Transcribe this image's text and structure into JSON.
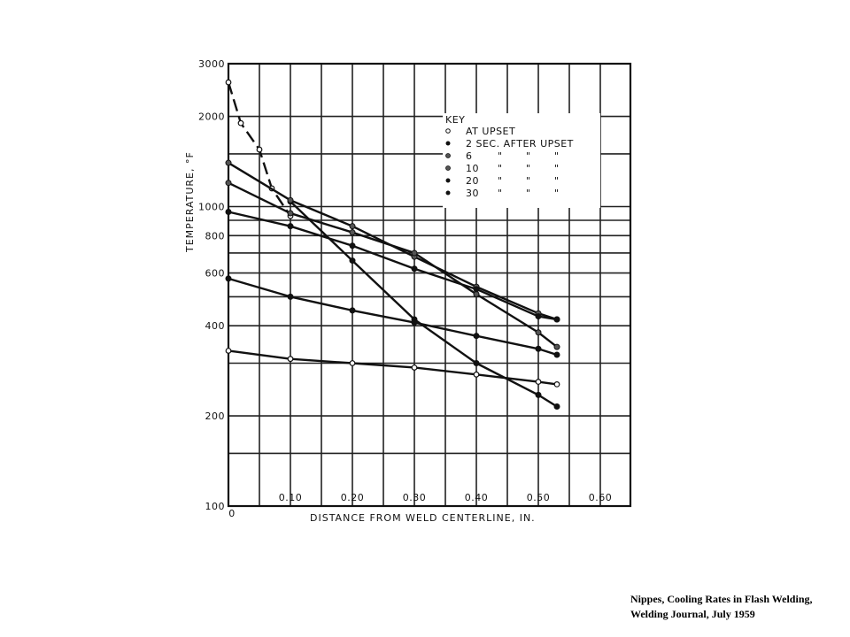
{
  "chart_data": {
    "type": "line",
    "xlabel": "DISTANCE FROM WELD CENTERLINE, IN.",
    "ylabel": "TEMPERATURE, °F",
    "xlim": [
      0,
      0.64
    ],
    "ylim": [
      100,
      3000
    ],
    "y_scale": "log",
    "grid": true,
    "x_ticks": [
      {
        "value": 0,
        "label": "0"
      },
      {
        "value": 0.1,
        "label": "0.10"
      },
      {
        "value": 0.2,
        "label": "0.20"
      },
      {
        "value": 0.3,
        "label": "0.30"
      },
      {
        "value": 0.4,
        "label": "0.40"
      },
      {
        "value": 0.5,
        "label": "0.50"
      },
      {
        "value": 0.6,
        "label": "0.60"
      }
    ],
    "y_ticks": [
      {
        "value": 3000,
        "label": "3000"
      },
      {
        "value": 2000,
        "label": "2000"
      },
      {
        "value": 1000,
        "label": "1000"
      },
      {
        "value": 800,
        "label": "800"
      },
      {
        "value": 600,
        "label": "600"
      },
      {
        "value": 400,
        "label": "400"
      },
      {
        "value": 200,
        "label": "200"
      },
      {
        "value": 100,
        "label": "100"
      }
    ],
    "legend": {
      "title": "KEY",
      "placement": "top-right",
      "rows": [
        {
          "label": "AT UPSET",
          "dittos": []
        },
        {
          "label": "2 SEC. AFTER UPSET",
          "dittos": []
        },
        {
          "label": "6",
          "dittos": [
            "\"",
            "\"",
            "\""
          ]
        },
        {
          "label": "10",
          "dittos": [
            "\"",
            "\"",
            "\""
          ]
        },
        {
          "label": "20",
          "dittos": [
            "\"",
            "\"",
            "\""
          ]
        },
        {
          "label": "30",
          "dittos": [
            "\"",
            "\"",
            "\""
          ]
        }
      ]
    },
    "series": [
      {
        "marker": "open",
        "dashed": true,
        "x": [
          0,
          0.02,
          0.05,
          0.07,
          0.1
        ],
        "y": [
          2600,
          1900,
          1550,
          1150,
          930
        ]
      },
      {
        "marker": "filled",
        "dashed": false,
        "x": [
          0.1,
          0.2,
          0.3,
          0.4,
          0.5,
          0.53
        ],
        "y": [
          1040,
          660,
          420,
          300,
          235,
          215
        ]
      },
      {
        "marker": "half",
        "dashed": false,
        "x": [
          0,
          0.1,
          0.2,
          0.3,
          0.4,
          0.5,
          0.53
        ],
        "y": [
          1400,
          1050,
          860,
          680,
          540,
          440,
          420
        ]
      },
      {
        "marker": "half",
        "dashed": false,
        "x": [
          0,
          0.1,
          0.2,
          0.3,
          0.4,
          0.5,
          0.53
        ],
        "y": [
          1200,
          950,
          820,
          700,
          510,
          380,
          340
        ]
      },
      {
        "marker": "filled",
        "dashed": false,
        "x": [
          0,
          0.1,
          0.2,
          0.3,
          0.4,
          0.5,
          0.53
        ],
        "y": [
          960,
          860,
          740,
          620,
          530,
          430,
          420
        ]
      },
      {
        "marker": "filled",
        "dashed": false,
        "x": [
          0,
          0.1,
          0.2,
          0.3,
          0.4,
          0.5,
          0.53
        ],
        "y": [
          575,
          500,
          450,
          410,
          370,
          335,
          320
        ]
      },
      {
        "marker": "open",
        "dashed": false,
        "x": [
          0,
          0.1,
          0.2,
          0.3,
          0.4,
          0.5,
          0.53
        ],
        "y": [
          330,
          310,
          300,
          290,
          275,
          260,
          255
        ]
      }
    ]
  },
  "caption": {
    "line1": "Nippes, Cooling Rates in Flash Welding,",
    "line2": "Welding Journal, July 1959"
  }
}
